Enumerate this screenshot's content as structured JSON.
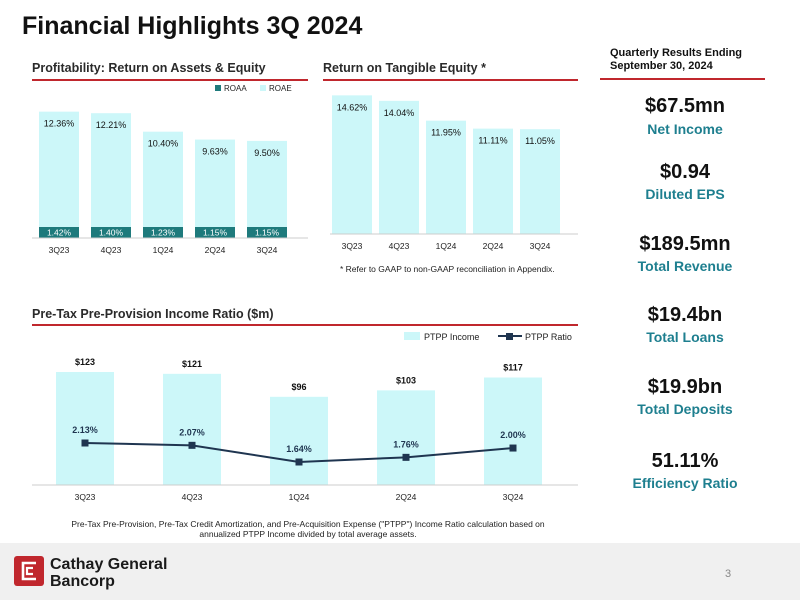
{
  "page": {
    "title": "Financial Highlights 3Q 2024",
    "page_number": "3"
  },
  "colors": {
    "bar_light": "#ccf7f9",
    "bar_dark": "#1e7a7c",
    "line": "#1f3550",
    "accent_red": "#c0272d",
    "kpi_teal": "#1e7f8f"
  },
  "roa_section": {
    "title": "Profitability: Return on Assets & Equity",
    "legend_roaa": "ROAA",
    "legend_roae": "ROAE"
  },
  "rote_section": {
    "title": "Return on Tangible Equity *",
    "footnote": "* Refer to GAAP to non-GAAP reconciliation in Appendix."
  },
  "pptp_section": {
    "title": "Pre-Tax Pre-Provision Income Ratio ($m)",
    "legend_income": "PTPP Income",
    "legend_ratio": "PTPP Ratio",
    "footnote_line1": "Pre-Tax Pre-Provision, Pre-Tax Credit Amortization, and Pre-Acquisition Expense (\"PTPP\") Income Ratio calculation based on",
    "footnote_line2": "annualized PTPP Income divided by total average assets."
  },
  "kpis": {
    "header_line1": "Quarterly Results Ending",
    "header_line2": "September 30, 2024",
    "items": [
      {
        "value": "$67.5mn",
        "label": "Net Income"
      },
      {
        "value": "$0.94",
        "label": "Diluted EPS"
      },
      {
        "value": "$189.5mn",
        "label": "Total Revenue"
      },
      {
        "value": "$19.4bn",
        "label": "Total Loans"
      },
      {
        "value": "$19.9bn",
        "label": "Total Deposits"
      },
      {
        "value": "51.11%",
        "label": "Efficiency Ratio"
      }
    ]
  },
  "logo": {
    "line1": "Cathay General",
    "line2": "Bancorp"
  },
  "chart_data": [
    {
      "id": "roa_roe",
      "type": "bar",
      "title": "Profitability: Return on Assets & Equity",
      "categories": [
        "3Q23",
        "4Q23",
        "1Q24",
        "2Q24",
        "3Q24"
      ],
      "series": [
        {
          "name": "ROAA",
          "values": [
            1.42,
            1.4,
            1.23,
            1.15,
            1.15
          ],
          "labels": [
            "1.42%",
            "1.40%",
            "1.23%",
            "1.15%",
            "1.15%"
          ]
        },
        {
          "name": "ROAE",
          "values": [
            12.36,
            12.21,
            10.4,
            9.63,
            9.5
          ],
          "labels": [
            "12.36%",
            "12.21%",
            "10.40%",
            "9.63%",
            "9.50%"
          ]
        }
      ],
      "ylim": [
        0,
        13.5
      ],
      "legend": "top-right"
    },
    {
      "id": "rote",
      "type": "bar",
      "title": "Return on Tangible Equity *",
      "categories": [
        "3Q23",
        "4Q23",
        "1Q24",
        "2Q24",
        "3Q24"
      ],
      "series": [
        {
          "name": "ROTE",
          "values": [
            14.62,
            14.04,
            11.95,
            11.11,
            11.05
          ],
          "labels": [
            "14.62%",
            "14.04%",
            "11.95%",
            "11.11%",
            "11.05%"
          ]
        }
      ],
      "ylim": [
        0,
        15.5
      ]
    },
    {
      "id": "ptpp",
      "type": "bar",
      "title": "Pre-Tax Pre-Provision Income Ratio ($m)",
      "categories": [
        "3Q23",
        "4Q23",
        "1Q24",
        "2Q24",
        "3Q24"
      ],
      "series": [
        {
          "name": "PTPP Income",
          "values": [
            123,
            121,
            96,
            103,
            117
          ],
          "labels": [
            "$123",
            "$121",
            "$96",
            "$103",
            "$117"
          ]
        },
        {
          "name": "PTPP Ratio",
          "type": "line",
          "values": [
            2.13,
            2.07,
            1.64,
            1.76,
            2.0
          ],
          "labels": [
            "2.13%",
            "2.07%",
            "1.64%",
            "1.76%",
            "2.00%"
          ]
        }
      ],
      "legend": "top-right"
    }
  ]
}
